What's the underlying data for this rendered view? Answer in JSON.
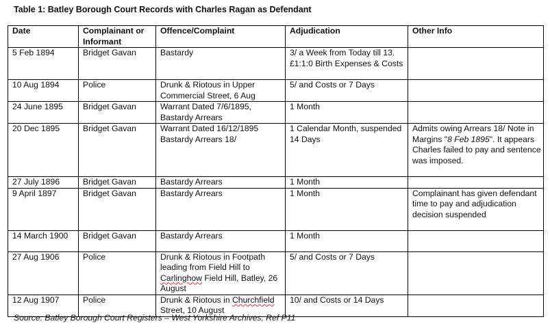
{
  "title": "Table 1: Batley Borough Court Records with Charles Ragan as Defendant",
  "headers": [
    "Date",
    "Complainant or Informant",
    "Offence/Complaint",
    "Adjudication",
    "Other Info"
  ],
  "rows": [
    {
      "date": "5 Feb 1894",
      "complainant": "Bridget Gavan",
      "offence": "Bastardy",
      "adjudication": "3/ a Week  from Today till 13. £1:1:0 Birth Expenses & Costs",
      "other": ""
    },
    {
      "date": "10 Aug 1894",
      "complainant": "Police",
      "offence": "Drunk & Riotous in Upper Commercial Street, 6 Aug",
      "adjudication": "5/ and Costs or 7 Days",
      "other": ""
    },
    {
      "date": "24 June 1895",
      "complainant": "Bridget Gavan",
      "offence": "Warrant  Dated 7/6/1895, Bastardy Arrears",
      "adjudication": "1 Month",
      "other": ""
    },
    {
      "date": "20 Dec 1895",
      "complainant": "Bridget Gavan",
      "offence": "Warrant  Dated 16/12/1895 Bastardy Arrears  18/",
      "adjudication": "1 Calendar  Month, suspended 14 Days",
      "other_pre": "Admits owing Arrears  18/ Note in Margins \"",
      "other_italic": "8 Feb 1895",
      "other_post": "\". It appears Charles  failed to pay and sentence was imposed."
    },
    {
      "date": "27 July 1896",
      "complainant": "Bridget Gavan",
      "offence": "Bastardy Arrears",
      "adjudication": "1 Month",
      "other": ""
    },
    {
      "date": "9 April 1897",
      "complainant": "Bridget Gavan",
      "offence": "Bastardy Arrears",
      "adjudication": "1 Month",
      "other": "Complainant has given defendant time to pay and adjudication decision suspended"
    },
    {
      "date": "14 March 1900",
      "complainant": "Bridget Gavan",
      "offence": "Bastardy Arrears",
      "adjudication": "1 Month",
      "other": ""
    },
    {
      "date": "27 Aug 1906",
      "complainant": "Police",
      "offence_pre": "Drunk & Riotous in Footpath leading from Field Hill to ",
      "offence_sq": "Carlinghow",
      "offence_post": " Field Hill, Batley, 26 August",
      "adjudication": "5/ and Costs or 7 Days",
      "other": ""
    },
    {
      "date": "12 Aug 1907",
      "complainant": "Police",
      "offence_pre": "Drunk & Riotous in ",
      "offence_sq": "Churchfield",
      "offence_post": " Street,  10 August",
      "adjudication": "10/ and Costs or 14 Days",
      "other": ""
    }
  ],
  "source": "Source:  Batley Borough  Court  Registers – West Yorkshire Archives, Ref P11"
}
